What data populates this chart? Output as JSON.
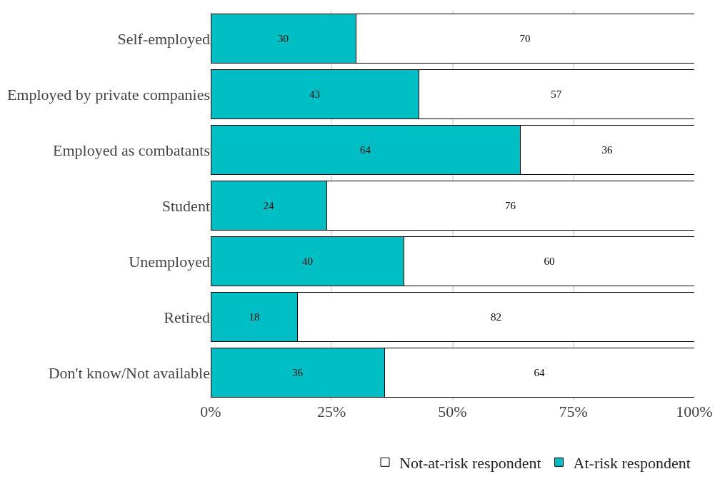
{
  "chart_data": {
    "type": "bar",
    "orientation": "horizontal",
    "stacked": true,
    "categories": [
      "Self-employed",
      "Employed by private companies",
      "Employed as combatants",
      "Student",
      "Unemployed",
      "Retired",
      "Don't know/Not available"
    ],
    "series": [
      {
        "name": "At-risk respondent",
        "color": "#00bfc4",
        "values": [
          30,
          43,
          64,
          24,
          40,
          18,
          36
        ]
      },
      {
        "name": "Not-at-risk respondent",
        "color": "#ffffff",
        "values": [
          70,
          57,
          36,
          76,
          60,
          82,
          64
        ]
      }
    ],
    "xlim": [
      0,
      100
    ],
    "xticks": [
      {
        "value": 0,
        "label": "0%"
      },
      {
        "value": 25,
        "label": "25%"
      },
      {
        "value": 50,
        "label": "50%"
      },
      {
        "value": 75,
        "label": "75%"
      },
      {
        "value": 100,
        "label": "100%"
      }
    ],
    "data_labels": true,
    "grid": "x",
    "legend": "bottom right"
  }
}
